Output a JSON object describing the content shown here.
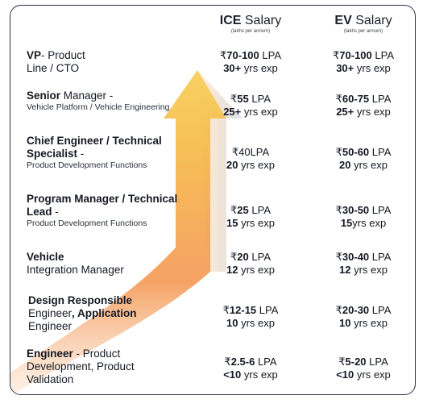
{
  "header": {
    "ice": {
      "bold": "ICE",
      "rest": " Salary",
      "sub": "(lakhs per annum)"
    },
    "ev": {
      "bold": "EV",
      "rest": " Salary",
      "sub": "(lakhs per annum)"
    }
  },
  "rows": [
    {
      "role_bold": "VP",
      "role_rest": "- Product",
      "role_line2": "Line /  CTO",
      "role_small": "",
      "ice_val": "70-100",
      "ice_unit": " LPA",
      "ice_exp_bold": "30+",
      "ice_exp_rest": " yrs exp",
      "ev_val": "70-100",
      "ev_unit": " LPA",
      "ev_exp_bold": "30+",
      "ev_exp_rest": " yrs exp"
    },
    {
      "role_bold": "Senior",
      "role_rest": " Manager -",
      "role_line2": "",
      "role_small": "Vehicle Platform / Vehicle Engineering",
      "ice_val": "55",
      "ice_unit": " LPA",
      "ice_exp_bold": "25+",
      "ice_exp_rest": " yrs exp",
      "ev_val": "60-75",
      "ev_unit": " LPA",
      "ev_exp_bold": "25+",
      "ev_exp_rest": " yrs exp"
    },
    {
      "role_bold": "Chief Engineer / Technical Specialist",
      "role_rest": " -",
      "role_line2": "",
      "role_small": "Product Development Functions",
      "ice_val": "40",
      "ice_unit": "LPA",
      "ice_exp_bold": "20",
      "ice_exp_rest": " yrs exp",
      "ev_val": "50-60",
      "ev_unit": " LPA",
      "ev_exp_bold": "20",
      "ev_exp_rest": " yrs exp"
    },
    {
      "role_bold": "Program Manager / Technical Lead",
      "role_rest": " -",
      "role_line2": "",
      "role_small": "Product Development Functions",
      "ice_val": "25",
      "ice_unit": " LPA",
      "ice_exp_bold": "15",
      "ice_exp_rest": " yrs exp",
      "ev_val": "30-50",
      "ev_unit": " LPA",
      "ev_exp_bold": "15",
      "ev_exp_rest": "yrs exp"
    },
    {
      "role_bold": "Vehicle",
      "role_rest": "",
      "role_line2": "Integration Manager",
      "role_small": "",
      "ice_val": "20",
      "ice_unit": " LPA",
      "ice_exp_bold": "12",
      "ice_exp_rest": " yrs exp",
      "ev_val": "30-40",
      "ev_unit": " LPA",
      "ev_exp_bold": "12",
      "ev_exp_rest": " yrs exp"
    },
    {
      "role_bold": "Design Responsible",
      "role_rest": "",
      "role_line2": "Engineer, Application",
      "role_line3": "Engineer",
      "role_small": "",
      "ice_val": "12-15",
      "ice_unit": " LPA",
      "ice_exp_bold": "10",
      "ice_exp_rest": " yrs exp",
      "ev_val": "20-30",
      "ev_unit": " LPA",
      "ev_exp_bold": "10",
      "ev_exp_rest": " yrs exp"
    },
    {
      "role_bold": "Engineer",
      "role_rest": " - Product",
      "role_line2": "Development, Product",
      "role_line3": "Validation",
      "role_small": "",
      "ice_val": "2.5-6",
      "ice_unit": " LPA",
      "ice_exp_bold": "<10",
      "ice_exp_rest": " yrs exp",
      "ev_val": "5-20",
      "ev_unit": " LPA",
      "ev_exp_bold": "<10",
      "ev_exp_rest": " yrs exp"
    }
  ],
  "currency": "₹",
  "colors": {
    "border": "#26314d",
    "arrow_top": "#f6c94b",
    "arrow_bottom": "#f07a2a",
    "arrow_right": "#cfdcf0"
  }
}
